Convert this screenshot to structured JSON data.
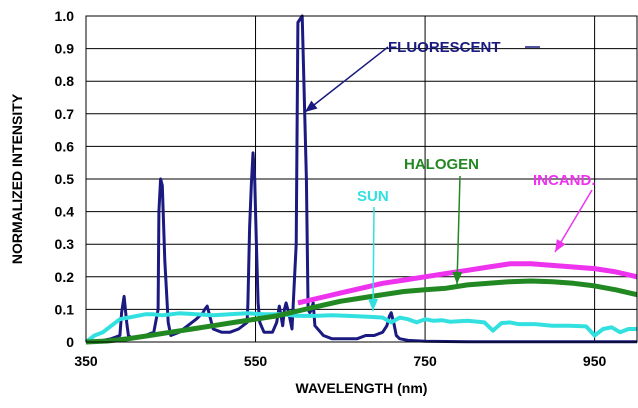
{
  "chart_data": {
    "type": "line",
    "title": "",
    "xlabel": "WAVELENGTH (nm)",
    "ylabel": "NORMALIZED INTENSITY",
    "xlim": [
      350,
      1000
    ],
    "ylim": [
      0,
      1.0
    ],
    "x_ticks": [
      350,
      550,
      750,
      950
    ],
    "y_ticks": [
      0,
      0.1,
      0.2,
      0.3,
      0.4,
      0.5,
      0.6,
      0.7,
      0.8,
      0.9,
      1.0
    ],
    "y_tick_labels": [
      "0",
      "0.1",
      "0.2",
      "0.3",
      "0.4",
      "0.5",
      "0.6",
      "0.7",
      "0.8",
      "0.9",
      "1.0"
    ],
    "x_tick_labels": [
      "350",
      "550",
      "750",
      "950"
    ],
    "grid": true,
    "legend": "none",
    "series": [
      {
        "name": "FLUORESCENT",
        "color": "#1a1a80",
        "x": [
          350,
          365,
          380,
          390,
          392,
          395,
          398,
          400,
          405,
          420,
          430,
          435,
          436,
          438,
          440,
          443,
          447,
          450,
          460,
          470,
          480,
          488,
          490,
          493,
          497,
          500,
          510,
          520,
          530,
          540,
          541,
          543,
          545,
          547,
          549,
          551,
          553,
          555,
          560,
          570,
          575,
          578,
          580,
          582,
          584,
          586,
          588,
          590,
          593,
          598,
          600,
          605,
          610,
          612,
          614,
          616,
          618,
          620,
          630,
          640,
          650,
          660,
          670,
          680,
          690,
          700,
          705,
          708,
          710,
          713,
          716,
          720,
          730,
          750,
          800,
          850,
          900,
          950,
          1000
        ],
        "y": [
          0,
          0.002,
          0.01,
          0.02,
          0.09,
          0.14,
          0.06,
          0.02,
          0.01,
          0.02,
          0.03,
          0.1,
          0.4,
          0.5,
          0.48,
          0.25,
          0.06,
          0.02,
          0.03,
          0.05,
          0.07,
          0.09,
          0.1,
          0.11,
          0.07,
          0.04,
          0.03,
          0.03,
          0.04,
          0.06,
          0.12,
          0.35,
          0.48,
          0.58,
          0.5,
          0.3,
          0.12,
          0.06,
          0.03,
          0.03,
          0.06,
          0.11,
          0.08,
          0.05,
          0.1,
          0.12,
          0.1,
          0.08,
          0.04,
          0.3,
          0.98,
          1.0,
          0.5,
          0.1,
          0.09,
          0.1,
          0.12,
          0.05,
          0.02,
          0.01,
          0.01,
          0.01,
          0.01,
          0.02,
          0.02,
          0.03,
          0.05,
          0.08,
          0.09,
          0.06,
          0.02,
          0.01,
          0.005,
          0.002,
          0.001,
          0.001,
          0.001,
          0.001,
          0.001
        ]
      },
      {
        "name": "SUN",
        "color": "#33e0e0",
        "x": [
          350,
          360,
          370,
          380,
          390,
          400,
          410,
          420,
          430,
          440,
          450,
          460,
          480,
          500,
          520,
          540,
          560,
          580,
          600,
          620,
          640,
          660,
          680,
          700,
          710,
          720,
          730,
          740,
          750,
          760,
          770,
          780,
          800,
          820,
          830,
          840,
          850,
          860,
          880,
          900,
          920,
          940,
          950,
          960,
          970,
          980,
          990,
          1000
        ],
        "y": [
          0,
          0.02,
          0.03,
          0.05,
          0.07,
          0.075,
          0.08,
          0.085,
          0.085,
          0.082,
          0.085,
          0.088,
          0.085,
          0.082,
          0.085,
          0.088,
          0.085,
          0.085,
          0.08,
          0.08,
          0.082,
          0.08,
          0.078,
          0.075,
          0.06,
          0.075,
          0.07,
          0.06,
          0.07,
          0.065,
          0.067,
          0.062,
          0.065,
          0.06,
          0.035,
          0.058,
          0.06,
          0.055,
          0.055,
          0.05,
          0.05,
          0.048,
          0.02,
          0.04,
          0.045,
          0.03,
          0.04,
          0.04
        ]
      },
      {
        "name": "HALOGEN",
        "color": "#228822",
        "x": [
          350,
          375,
          400,
          425,
          450,
          475,
          500,
          525,
          550,
          575,
          600,
          625,
          650,
          675,
          700,
          725,
          750,
          775,
          800,
          825,
          850,
          875,
          900,
          925,
          950,
          975,
          1000
        ],
        "y": [
          0,
          0.003,
          0.01,
          0.02,
          0.03,
          0.04,
          0.05,
          0.06,
          0.07,
          0.08,
          0.095,
          0.11,
          0.125,
          0.135,
          0.145,
          0.155,
          0.16,
          0.165,
          0.175,
          0.18,
          0.185,
          0.187,
          0.185,
          0.18,
          0.172,
          0.16,
          0.145
        ]
      },
      {
        "name": "INCAND.",
        "color": "#ee33ee",
        "x": [
          600,
          625,
          650,
          675,
          700,
          725,
          750,
          775,
          800,
          825,
          850,
          875,
          900,
          925,
          950,
          975,
          1000
        ],
        "y": [
          0.12,
          0.135,
          0.15,
          0.165,
          0.18,
          0.19,
          0.2,
          0.21,
          0.22,
          0.23,
          0.24,
          0.24,
          0.235,
          0.23,
          0.225,
          0.215,
          0.2
        ]
      }
    ],
    "annotations": [
      {
        "label": "FLUORESCENT",
        "color": "#1a1a80"
      },
      {
        "label": "HALOGEN",
        "color": "#228822"
      },
      {
        "label": "INCAND.",
        "color": "#ee33ee"
      },
      {
        "label": "SUN",
        "color": "#33e0e0"
      }
    ]
  }
}
